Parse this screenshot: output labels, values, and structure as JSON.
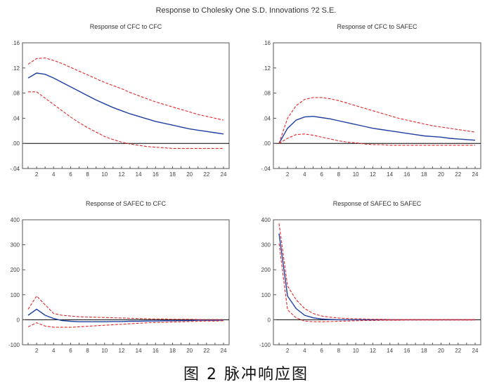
{
  "figure_title": "Response to Cholesky One S.D. Innovations ?2 S.E.",
  "caption": "图 2   脉冲响应图",
  "colors": {
    "response": "#1f3fa0",
    "band": "#e0282a",
    "zero": "#000000"
  },
  "chart_data": [
    {
      "type": "line",
      "title": "Response of CFC to CFC",
      "xlabel": "",
      "ylabel": "",
      "x": [
        1,
        2,
        3,
        4,
        5,
        6,
        7,
        8,
        9,
        10,
        11,
        12,
        13,
        14,
        15,
        16,
        17,
        18,
        19,
        20,
        21,
        22,
        23,
        24
      ],
      "x_ticks": [
        2,
        4,
        6,
        8,
        10,
        12,
        14,
        16,
        18,
        20,
        22,
        24
      ],
      "ylim": [
        -0.04,
        0.16
      ],
      "y_ticks": [
        -0.04,
        0.0,
        0.04,
        0.08,
        0.12,
        0.16
      ],
      "y_tick_labels": [
        "-.04",
        ".00",
        ".04",
        ".08",
        ".12",
        ".16"
      ],
      "grid": false,
      "zero_line": true,
      "series": [
        {
          "role": "response",
          "values": [
            0.104,
            0.112,
            0.11,
            0.104,
            0.097,
            0.09,
            0.083,
            0.076,
            0.069,
            0.063,
            0.057,
            0.052,
            0.047,
            0.043,
            0.039,
            0.035,
            0.032,
            0.029,
            0.026,
            0.023,
            0.021,
            0.019,
            0.017,
            0.015
          ]
        },
        {
          "role": "upper",
          "values": [
            0.126,
            0.135,
            0.136,
            0.132,
            0.127,
            0.121,
            0.115,
            0.109,
            0.103,
            0.097,
            0.092,
            0.087,
            0.081,
            0.076,
            0.071,
            0.066,
            0.062,
            0.058,
            0.054,
            0.05,
            0.046,
            0.043,
            0.04,
            0.037
          ]
        },
        {
          "role": "lower",
          "values": [
            0.082,
            0.082,
            0.072,
            0.062,
            0.052,
            0.042,
            0.033,
            0.025,
            0.018,
            0.011,
            0.006,
            0.002,
            -0.001,
            -0.003,
            -0.005,
            -0.006,
            -0.007,
            -0.008,
            -0.008,
            -0.008,
            -0.008,
            -0.008,
            -0.008,
            -0.008
          ]
        }
      ]
    },
    {
      "type": "line",
      "title": "Response of CFC to SAFEC",
      "xlabel": "",
      "ylabel": "",
      "x": [
        1,
        2,
        3,
        4,
        5,
        6,
        7,
        8,
        9,
        10,
        11,
        12,
        13,
        14,
        15,
        16,
        17,
        18,
        19,
        20,
        21,
        22,
        23,
        24
      ],
      "x_ticks": [
        2,
        4,
        6,
        8,
        10,
        12,
        14,
        16,
        18,
        20,
        22,
        24
      ],
      "ylim": [
        -0.04,
        0.16
      ],
      "y_ticks": [
        -0.04,
        0.0,
        0.04,
        0.08,
        0.12,
        0.16
      ],
      "y_tick_labels": [
        "-.04",
        ".00",
        ".04",
        ".08",
        ".12",
        ".16"
      ],
      "grid": false,
      "zero_line": true,
      "series": [
        {
          "role": "response",
          "values": [
            0.0,
            0.024,
            0.037,
            0.042,
            0.043,
            0.041,
            0.039,
            0.036,
            0.033,
            0.03,
            0.027,
            0.024,
            0.022,
            0.02,
            0.018,
            0.016,
            0.014,
            0.012,
            0.011,
            0.01,
            0.008,
            0.007,
            0.006,
            0.005
          ]
        },
        {
          "role": "upper",
          "values": [
            0.0,
            0.04,
            0.06,
            0.07,
            0.073,
            0.073,
            0.071,
            0.068,
            0.064,
            0.06,
            0.056,
            0.052,
            0.048,
            0.044,
            0.04,
            0.037,
            0.034,
            0.031,
            0.028,
            0.026,
            0.024,
            0.022,
            0.02,
            0.018
          ]
        },
        {
          "role": "lower",
          "values": [
            0.0,
            0.008,
            0.014,
            0.015,
            0.013,
            0.01,
            0.007,
            0.004,
            0.002,
            0.001,
            -0.001,
            -0.002,
            -0.002,
            -0.003,
            -0.003,
            -0.003,
            -0.003,
            -0.003,
            -0.003,
            -0.003,
            -0.003,
            -0.003,
            -0.003,
            -0.003
          ]
        }
      ]
    },
    {
      "type": "line",
      "title": "Response of SAFEC to CFC",
      "xlabel": "",
      "ylabel": "",
      "x": [
        1,
        2,
        3,
        4,
        5,
        6,
        7,
        8,
        9,
        10,
        11,
        12,
        13,
        14,
        15,
        16,
        17,
        18,
        19,
        20,
        21,
        22,
        23,
        24
      ],
      "x_ticks": [
        2,
        4,
        6,
        8,
        10,
        12,
        14,
        16,
        18,
        20,
        22,
        24
      ],
      "ylim": [
        -100,
        400
      ],
      "y_ticks": [
        -100,
        0,
        100,
        200,
        300,
        400
      ],
      "y_tick_labels": [
        "-100",
        "0",
        "100",
        "200",
        "300",
        "400"
      ],
      "grid": false,
      "zero_line": true,
      "series": [
        {
          "role": "response",
          "values": [
            18,
            42,
            18,
            5,
            -3,
            -6,
            -8,
            -8,
            -8,
            -8,
            -7,
            -7,
            -6,
            -6,
            -5,
            -5,
            -4,
            -4,
            -3,
            -3,
            -2,
            -2,
            -2,
            -1
          ]
        },
        {
          "role": "upper",
          "values": [
            42,
            95,
            60,
            25,
            18,
            15,
            12,
            11,
            10,
            9,
            8,
            7,
            6,
            5,
            4,
            3,
            3,
            2,
            2,
            2,
            1,
            1,
            1,
            1
          ]
        },
        {
          "role": "lower",
          "values": [
            -28,
            -12,
            -25,
            -30,
            -30,
            -30,
            -28,
            -26,
            -24,
            -22,
            -20,
            -18,
            -16,
            -14,
            -12,
            -11,
            -10,
            -9,
            -8,
            -7,
            -6,
            -5,
            -5,
            -4
          ]
        }
      ]
    },
    {
      "type": "line",
      "title": "Response of SAFEC to SAFEC",
      "xlabel": "",
      "ylabel": "",
      "x": [
        1,
        2,
        3,
        4,
        5,
        6,
        7,
        8,
        9,
        10,
        11,
        12,
        13,
        14,
        15,
        16,
        17,
        18,
        19,
        20,
        21,
        22,
        23,
        24
      ],
      "x_ticks": [
        2,
        4,
        6,
        8,
        10,
        12,
        14,
        16,
        18,
        20,
        22,
        24
      ],
      "ylim": [
        -100,
        400
      ],
      "y_ticks": [
        -100,
        0,
        100,
        200,
        300,
        400
      ],
      "y_tick_labels": [
        "-100",
        "0",
        "100",
        "200",
        "300",
        "400"
      ],
      "grid": false,
      "zero_line": true,
      "series": [
        {
          "role": "response",
          "values": [
            345,
            95,
            45,
            18,
            8,
            3,
            1,
            0,
            0,
            0,
            0,
            0,
            0,
            0,
            0,
            0,
            0,
            0,
            0,
            0,
            0,
            0,
            0,
            0
          ]
        },
        {
          "role": "upper",
          "values": [
            385,
            135,
            80,
            45,
            25,
            15,
            10,
            7,
            5,
            4,
            3,
            2,
            2,
            1,
            1,
            1,
            1,
            1,
            1,
            1,
            1,
            1,
            1,
            1
          ]
        },
        {
          "role": "lower",
          "values": [
            305,
            40,
            8,
            -5,
            -8,
            -8,
            -7,
            -6,
            -5,
            -4,
            -3,
            -3,
            -2,
            -2,
            -2,
            -1,
            -1,
            -1,
            -1,
            -1,
            -1,
            -1,
            -1,
            -1
          ]
        }
      ]
    }
  ]
}
